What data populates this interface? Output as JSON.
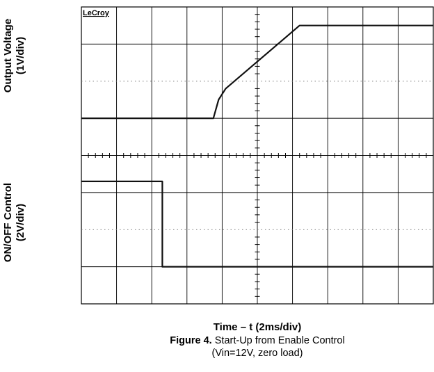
{
  "chart_data": {
    "type": "line",
    "brand": "LeCroy",
    "xlabel": "Time – t (2ms/div)",
    "figure_label": "Figure 4.",
    "figure_title": "Start-Up from Enable Control",
    "figure_subtitle": "(Vin=12V, zero load)",
    "time_per_div_ms": 2,
    "horizontal_divisions": 10,
    "vertical_divisions": 8,
    "grid": true,
    "series": [
      {
        "name": "Output Voltage",
        "label_line1": "Output Voltage",
        "label_line2": "(1V/div)",
        "volts_per_div": 1,
        "x_ms": [
          0,
          7.5,
          7.8,
          8.2,
          12.4,
          20
        ],
        "y_div": [
          5.0,
          5.0,
          5.5,
          5.8,
          7.5,
          7.5
        ]
      },
      {
        "name": "ON/OFF Control",
        "label_line1": "ON/OFF Control",
        "label_line2": "(2V/div)",
        "volts_per_div": 2,
        "x_ms": [
          0,
          4.6,
          4.6,
          20
        ],
        "y_div": [
          3.3,
          3.3,
          1.0,
          1.0
        ]
      }
    ]
  }
}
